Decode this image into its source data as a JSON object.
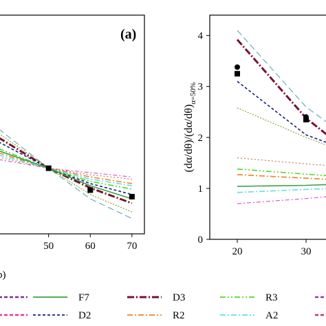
{
  "chart_data": [
    {
      "panel_label": "(a)",
      "type": "line",
      "x_ticks": [
        "50",
        "60",
        "70"
      ],
      "xlim": [
        38,
        73
      ],
      "ylim": [
        0.85,
        1.35
      ],
      "markers": {
        "square": {
          "x": [
            50,
            60,
            70
          ],
          "y": [
            1.0,
            0.95,
            0.935
          ]
        }
      },
      "series": [
        {
          "name": "D3",
          "x": [
            38,
            50,
            60,
            70
          ],
          "y": [
            1.07,
            1.0,
            0.955,
            0.92
          ]
        },
        {
          "name": "D2",
          "x": [
            38,
            50,
            60,
            70
          ],
          "y": [
            1.06,
            1.0,
            0.965,
            0.94
          ]
        },
        {
          "name": "R2",
          "x": [
            38,
            50,
            60,
            70
          ],
          "y": [
            1.035,
            1.0,
            0.98,
            0.965
          ]
        },
        {
          "name": "A2",
          "x": [
            38,
            50,
            60,
            70
          ],
          "y": [
            1.03,
            1.0,
            0.975,
            0.96
          ]
        },
        {
          "name": "R3",
          "x": [
            38,
            50,
            60,
            70
          ],
          "y": [
            1.045,
            1.0,
            0.97,
            0.952
          ]
        },
        {
          "name": "F7",
          "x": [
            38,
            50,
            60,
            70
          ],
          "y": [
            1.04,
            1.0,
            0.96,
            0.93
          ]
        },
        {
          "name": "teal",
          "x": [
            38,
            50,
            60,
            70
          ],
          "y": [
            1.09,
            1.0,
            0.93,
            0.885
          ]
        },
        {
          "name": "magenta",
          "x": [
            38,
            50,
            60,
            70
          ],
          "y": [
            1.02,
            1.0,
            0.99,
            0.98
          ]
        },
        {
          "name": "olive",
          "x": [
            38,
            50,
            60,
            70
          ],
          "y": [
            1.08,
            1.0,
            0.94,
            0.9
          ]
        },
        {
          "name": "brown",
          "x": [
            38,
            50,
            60,
            70
          ],
          "y": [
            1.025,
            1.0,
            0.985,
            0.975
          ]
        }
      ]
    },
    {
      "type": "line",
      "ylabel": "(dα/dθ)/(dα/dθ)",
      "ylabel_sub": "α=50%",
      "x_ticks": [
        "20",
        "30"
      ],
      "xlim": [
        16,
        34
      ],
      "y_ticks": [
        "0",
        "1",
        "2",
        "3",
        "4"
      ],
      "ylim": [
        0,
        4.4
      ],
      "markers": {
        "square": {
          "x": [
            20,
            30
          ],
          "y": [
            3.25,
            2.35
          ]
        },
        "circle": {
          "x": [
            20,
            30
          ],
          "y": [
            3.38,
            2.4
          ]
        }
      },
      "series": [
        {
          "name": "teal",
          "x": [
            20,
            30,
            34
          ],
          "y": [
            4.1,
            2.6,
            2.2
          ]
        },
        {
          "name": "D3",
          "x": [
            20,
            30,
            34
          ],
          "y": [
            3.92,
            2.38,
            1.95
          ]
        },
        {
          "name": "D2",
          "x": [
            20,
            30,
            34
          ],
          "y": [
            3.1,
            2.05,
            1.85
          ]
        },
        {
          "name": "olive",
          "x": [
            20,
            30,
            34
          ],
          "y": [
            2.58,
            2.0,
            1.8
          ]
        },
        {
          "name": "brown",
          "x": [
            20,
            30,
            34
          ],
          "y": [
            1.6,
            1.48,
            1.44
          ]
        },
        {
          "name": "R3",
          "x": [
            20,
            30,
            34
          ],
          "y": [
            1.38,
            1.28,
            1.24
          ]
        },
        {
          "name": "R2",
          "x": [
            20,
            30,
            34
          ],
          "y": [
            1.27,
            1.2,
            1.17
          ]
        },
        {
          "name": "F7",
          "x": [
            20,
            30,
            34
          ],
          "y": [
            1.04,
            1.06,
            1.08
          ]
        },
        {
          "name": "A2",
          "x": [
            20,
            30,
            34
          ],
          "y": [
            0.92,
            0.98,
            1.0
          ]
        },
        {
          "name": "magenta",
          "x": [
            20,
            30,
            34
          ],
          "y": [
            0.7,
            0.8,
            0.85
          ]
        }
      ]
    }
  ],
  "caption_fragment": "b)",
  "legend": [
    {
      "label": "",
      "color": "#7b2d8e"
    },
    {
      "label": "F7",
      "color": "#3aa045"
    },
    {
      "label": "D3",
      "color": "#7b1030"
    },
    {
      "label": "R3",
      "color": "#55d62a"
    },
    {
      "label": "",
      "color": "#9b2fd0"
    },
    {
      "label": "",
      "color": "#ee3399"
    },
    {
      "label": "D2",
      "color": "#121f80"
    },
    {
      "label": "R2",
      "color": "#f08020"
    },
    {
      "label": "A2",
      "color": "#5fe0e8"
    },
    {
      "label": "",
      "color": "#c73070"
    }
  ],
  "colors": {
    "teal": "#5aa6b4",
    "magenta": "#d050c8",
    "olive": "#8a9a25",
    "brown": "#c06a4a"
  }
}
